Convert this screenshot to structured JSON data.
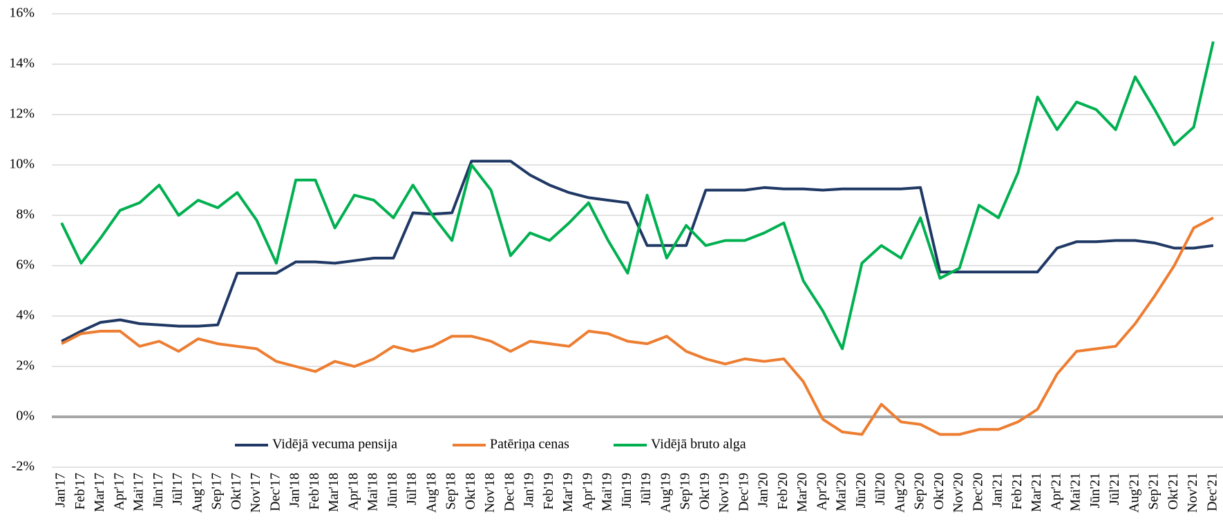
{
  "chart_data": {
    "type": "line",
    "categories": [
      "Jan'17",
      "Feb'17",
      "Mar'17",
      "Apr'17",
      "Mai'17",
      "Jūn'17",
      "Jūl'17",
      "Aug'17",
      "Sep'17",
      "Okt'17",
      "Nov'17",
      "Dec'17",
      "Jan'18",
      "Feb'18",
      "Mar'18",
      "Apr'18",
      "Mai'18",
      "Jūn'18",
      "Jūl'18",
      "Aug'18",
      "Sep'18",
      "Okt'18",
      "Nov'18",
      "Dec'18",
      "Jan'19",
      "Feb'19",
      "Mar'19",
      "Apr'19",
      "Mai'19",
      "Jūn'19",
      "Jūl'19",
      "Aug'19",
      "Sep'19",
      "Okt'19",
      "Nov'19",
      "Dec'19",
      "Jan'20",
      "Feb'20",
      "Mar'20",
      "Apr'20",
      "Mai'20",
      "Jūn'20",
      "Jūl'20",
      "Aug'20",
      "Sep'20",
      "Okt'20",
      "Nov'20",
      "Dec'20",
      "Jan'21",
      "Feb'21",
      "Mar'21",
      "Apr'21",
      "Mai'21",
      "Jūn'21",
      "Jūl'21",
      "Aug'21",
      "Sep'21",
      "Okt'21",
      "Nov'21",
      "Dec'21"
    ],
    "series": [
      {
        "name": "Vidējā vecuma pensija",
        "color": "#1f3864",
        "values": [
          3.0,
          3.4,
          3.75,
          3.85,
          3.7,
          3.65,
          3.6,
          3.6,
          3.65,
          5.7,
          5.7,
          5.7,
          6.15,
          6.15,
          6.1,
          6.2,
          6.3,
          6.3,
          8.1,
          8.05,
          8.1,
          10.15,
          10.15,
          10.15,
          9.6,
          9.2,
          8.9,
          8.7,
          8.6,
          8.5,
          6.8,
          6.8,
          6.8,
          9.0,
          9.0,
          9.0,
          9.1,
          9.05,
          9.05,
          9.0,
          9.05,
          9.05,
          9.05,
          9.05,
          9.1,
          5.75,
          5.75,
          5.75,
          5.75,
          5.75,
          5.75,
          6.7,
          6.95,
          6.95,
          7.0,
          7.0,
          6.9,
          6.7,
          6.7,
          6.8
        ]
      },
      {
        "name": "Patēriņa cenas",
        "color": "#ed7d31",
        "values": [
          2.9,
          3.3,
          3.4,
          3.4,
          2.8,
          3.0,
          2.6,
          3.1,
          2.9,
          2.8,
          2.7,
          2.2,
          2.0,
          1.8,
          2.2,
          2.0,
          2.3,
          2.8,
          2.6,
          2.8,
          3.2,
          3.2,
          3.0,
          2.6,
          3.0,
          2.9,
          2.8,
          3.4,
          3.3,
          3.0,
          2.9,
          3.2,
          2.6,
          2.3,
          2.1,
          2.3,
          2.2,
          2.3,
          1.4,
          -0.1,
          -0.6,
          -0.7,
          0.5,
          -0.2,
          -0.3,
          -0.7,
          -0.7,
          -0.5,
          -0.5,
          -0.2,
          0.3,
          1.7,
          2.6,
          2.7,
          2.8,
          3.7,
          4.8,
          6.0,
          7.5,
          7.9
        ]
      },
      {
        "name": "Vidējā bruto alga",
        "color": "#00b050",
        "values": [
          7.7,
          6.1,
          7.1,
          8.2,
          8.5,
          9.2,
          8.0,
          8.6,
          8.3,
          8.9,
          7.8,
          6.1,
          9.4,
          9.4,
          7.5,
          8.8,
          8.6,
          7.9,
          9.2,
          8.0,
          7.0,
          10.0,
          9.0,
          6.4,
          7.3,
          7.0,
          7.7,
          8.5,
          7.0,
          5.7,
          8.8,
          6.3,
          7.6,
          6.8,
          7.0,
          7.0,
          7.3,
          7.7,
          5.4,
          4.2,
          2.7,
          6.1,
          6.8,
          6.3,
          7.9,
          5.5,
          5.9,
          8.4,
          7.9,
          9.7,
          12.7,
          11.4,
          12.5,
          12.2,
          11.4,
          13.5,
          12.2,
          10.8,
          11.5,
          14.9
        ]
      }
    ],
    "ylim": [
      -2,
      16
    ],
    "yticks": [
      {
        "value": -2,
        "label": "-2%"
      },
      {
        "value": 0,
        "label": "0%"
      },
      {
        "value": 2,
        "label": "2%"
      },
      {
        "value": 4,
        "label": "4%"
      },
      {
        "value": 6,
        "label": "6%"
      },
      {
        "value": 8,
        "label": "8%"
      },
      {
        "value": 10,
        "label": "10%"
      },
      {
        "value": 12,
        "label": "12%"
      },
      {
        "value": 14,
        "label": "14%"
      },
      {
        "value": 16,
        "label": "16%"
      }
    ],
    "grid": true,
    "legend": "bottom"
  }
}
